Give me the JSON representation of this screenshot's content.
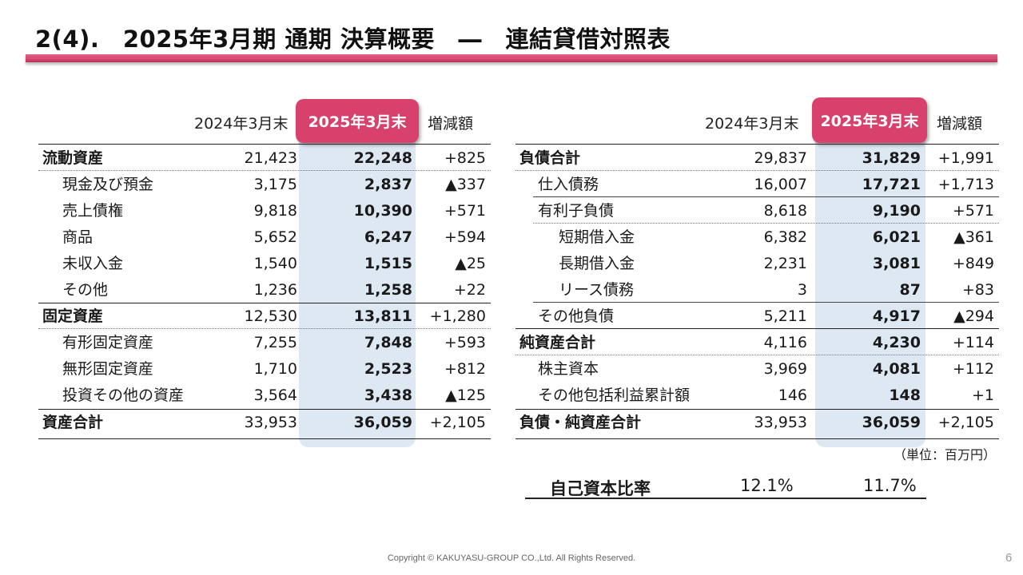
{
  "title": "2(4).　2025年3月期 通期 決算概要　―　連結貸借対照表",
  "headers": {
    "prev": "2024年3月末",
    "curr": "2025年3月末",
    "diff": "増減額"
  },
  "assets": [
    {
      "label": "流動資産",
      "prev": "21,423",
      "curr": "22,248",
      "diff": "+825"
    },
    {
      "label": "現金及び預金",
      "prev": "3,175",
      "curr": "2,837",
      "diff": "▲337"
    },
    {
      "label": "売上債権",
      "prev": "9,818",
      "curr": "10,390",
      "diff": "+571"
    },
    {
      "label": "商品",
      "prev": "5,652",
      "curr": "6,247",
      "diff": "+594"
    },
    {
      "label": "未収入金",
      "prev": "1,540",
      "curr": "1,515",
      "diff": "▲25"
    },
    {
      "label": "その他",
      "prev": "1,236",
      "curr": "1,258",
      "diff": "+22"
    },
    {
      "label": "固定資産",
      "prev": "12,530",
      "curr": "13,811",
      "diff": "+1,280"
    },
    {
      "label": "有形固定資産",
      "prev": "7,255",
      "curr": "7,848",
      "diff": "+593"
    },
    {
      "label": "無形固定資産",
      "prev": "1,710",
      "curr": "2,523",
      "diff": "+812"
    },
    {
      "label": "投資その他の資産",
      "prev": "3,564",
      "curr": "3,438",
      "diff": "▲125"
    },
    {
      "label": "資産合計",
      "prev": "33,953",
      "curr": "36,059",
      "diff": "+2,105"
    }
  ],
  "liabilities": [
    {
      "label": "負債合計",
      "prev": "29,837",
      "curr": "31,829",
      "diff": "+1,991"
    },
    {
      "label": "仕入債務",
      "prev": "16,007",
      "curr": "17,721",
      "diff": "+1,713"
    },
    {
      "label": "有利子負債",
      "prev": "8,618",
      "curr": "9,190",
      "diff": "+571"
    },
    {
      "label": "短期借入金",
      "prev": "6,382",
      "curr": "6,021",
      "diff": "▲361"
    },
    {
      "label": "長期借入金",
      "prev": "2,231",
      "curr": "3,081",
      "diff": "+849"
    },
    {
      "label": "リース債務",
      "prev": "3",
      "curr": "87",
      "diff": "+83"
    },
    {
      "label": "その他負債",
      "prev": "5,211",
      "curr": "4,917",
      "diff": "▲294"
    },
    {
      "label": "純資産合計",
      "prev": "4,116",
      "curr": "4,230",
      "diff": "+114"
    },
    {
      "label": "株主資本",
      "prev": "3,969",
      "curr": "4,081",
      "diff": "+112"
    },
    {
      "label": "その他包括利益累計額",
      "prev": "146",
      "curr": "148",
      "diff": "+1"
    },
    {
      "label": "負債・純資産合計",
      "prev": "33,953",
      "curr": "36,059",
      "diff": "+2,105"
    }
  ],
  "unit_note": "（単位：百万円）",
  "equity_ratio": {
    "label": "自己資本比率",
    "prev": "12.1%",
    "curr": "11.7%"
  },
  "footer": "Copyright © KAKUYASU-GROUP CO.,Ltd. All Rights Reserved.",
  "page_number": "6",
  "colors": {
    "accent": "#d7416b",
    "highlight": "#dde8f3"
  }
}
